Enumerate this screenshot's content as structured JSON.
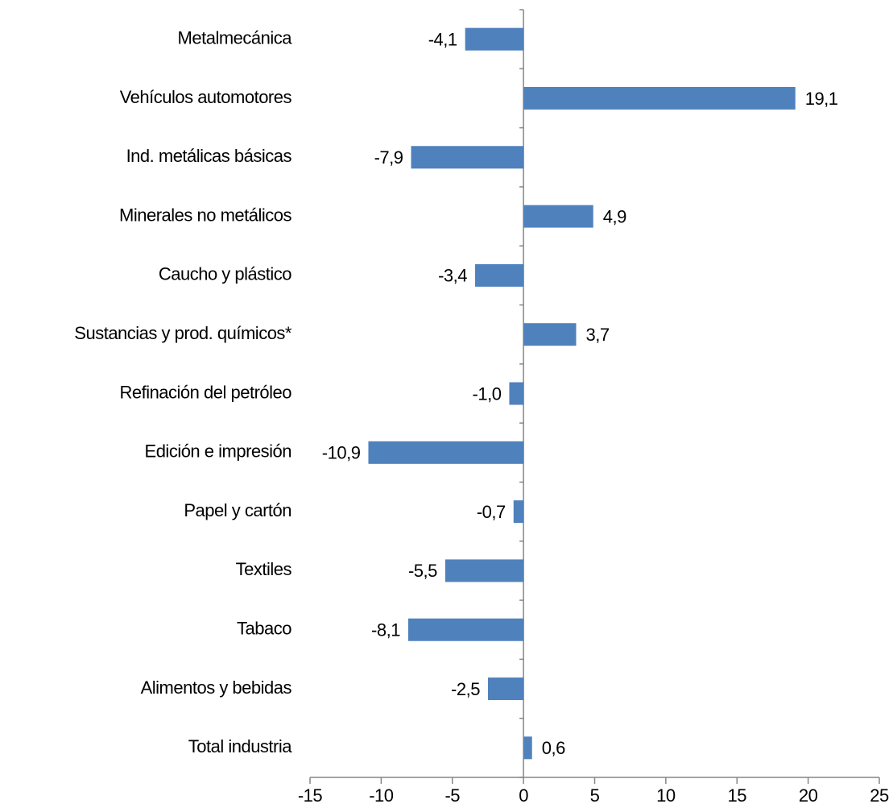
{
  "chart_data": {
    "type": "barh",
    "categories": [
      "Metalmecánica",
      "Vehículos automotores",
      "Ind. metálicas básicas",
      "Minerales no metálicos",
      "Caucho y plástico",
      "Sustancias y prod. químicos*",
      "Refinación del petróleo",
      "Edición e impresión",
      "Papel y cartón",
      "Textiles",
      "Tabaco",
      "Alimentos y bebidas",
      "Total industria"
    ],
    "values": [
      -4.1,
      19.1,
      -7.9,
      4.9,
      -3.4,
      3.7,
      -1.0,
      -10.9,
      -0.7,
      -5.5,
      -8.1,
      -2.5,
      0.6
    ],
    "value_labels": [
      "-4,1",
      "19,1",
      "-7,9",
      "4,9",
      "-3,4",
      "3,7",
      "-1,0",
      "-10,9",
      "-0,7",
      "-5,5",
      "-8,1",
      "-2,5",
      "0,6"
    ],
    "color": "#4f81bd",
    "xlim": [
      -15,
      25
    ],
    "xticks": [
      -15,
      -10,
      -5,
      0,
      5,
      10,
      15,
      20,
      25
    ]
  }
}
